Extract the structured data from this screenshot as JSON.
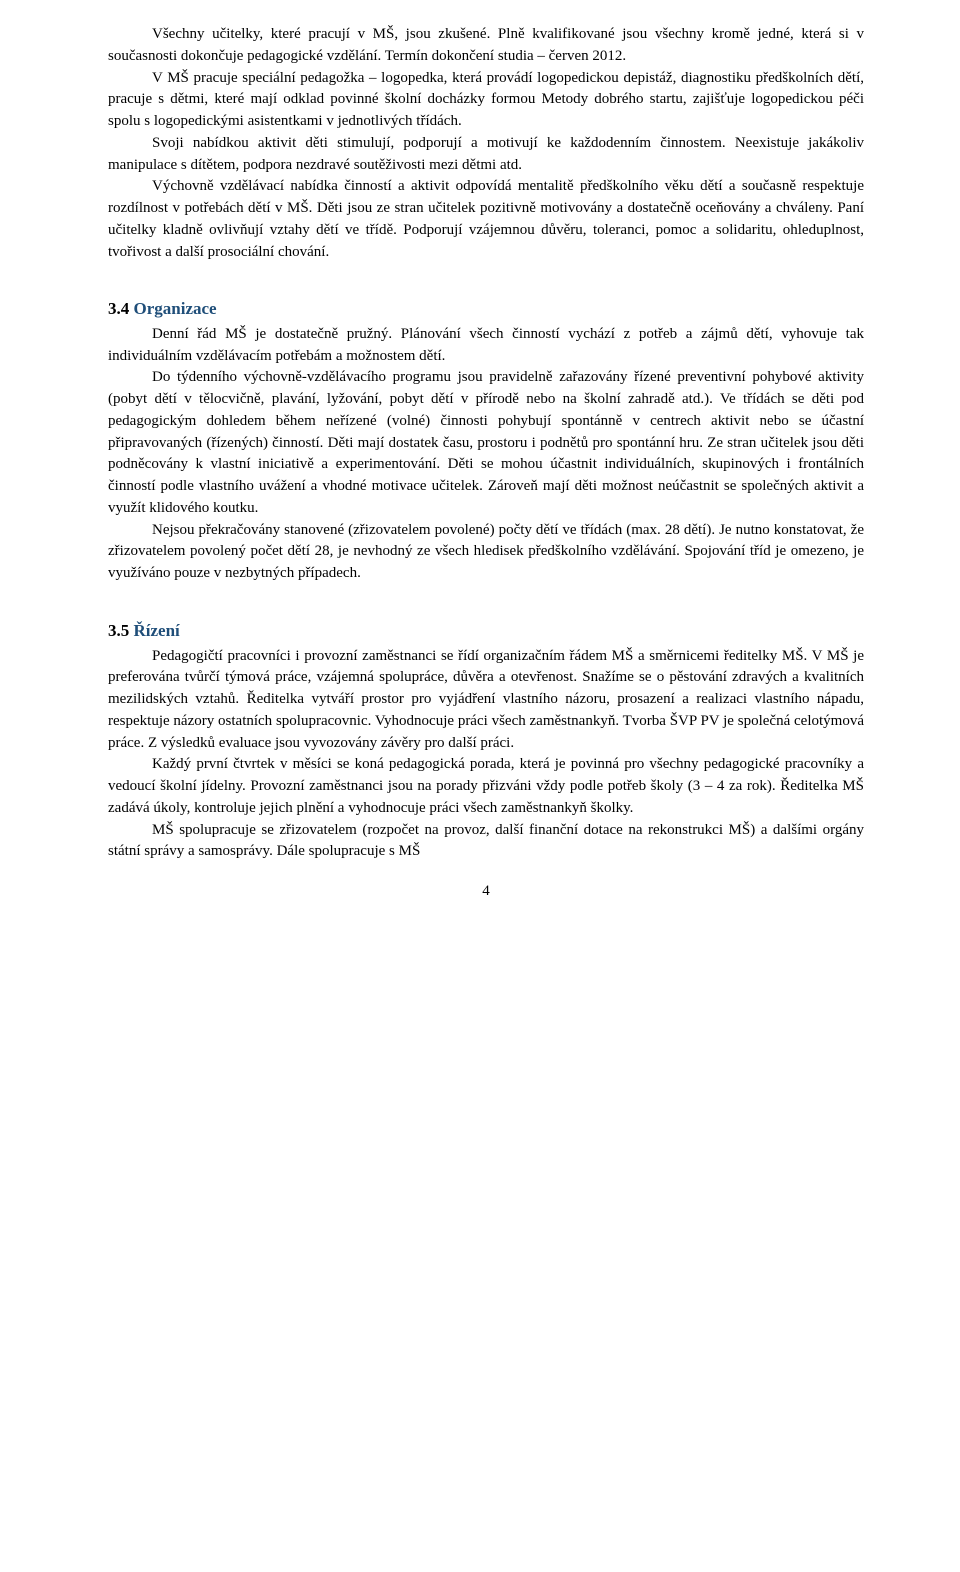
{
  "intro": {
    "p1": "Všechny učitelky, které pracují v MŠ, jsou zkušené. Plně kvalifikované jsou všechny kromě jedné, která si v současnosti dokončuje pedagogické vzdělání. Termín dokončení studia – červen 2012.",
    "p2": "V MŠ pracuje speciální pedagožka – logopedka, která provádí logopedickou depistáž, diagnostiku předškolních dětí, pracuje s dětmi, které mají odklad povinné školní docházky formou Metody dobrého startu, zajišťuje logopedickou péči spolu s logopedickými asistentkami v jednotlivých třídách.",
    "p3": "Svoji nabídkou aktivit děti stimulují, podporují a motivují ke každodenním činnostem. Neexistuje jakákoliv manipulace s dítětem, podpora nezdravé soutěživosti mezi dětmi atd.",
    "p4": "Výchovně vzdělávací nabídka činností a aktivit odpovídá mentalitě předškolního věku dětí a současně respektuje rozdílnost v potřebách dětí v MŠ. Děti jsou ze stran učitelek pozitivně motivovány a dostatečně oceňovány a chváleny. Paní učitelky kladně ovlivňují vztahy dětí ve třídě. Podporují vzájemnou důvěru, toleranci, pomoc a solidaritu, ohleduplnost, tvořivost a další prosociální chování."
  },
  "s34": {
    "num": "3.4",
    "title": "Organizace",
    "p1": "Denní řád MŠ je dostatečně pružný. Plánování všech činností vychází z potřeb a zájmů dětí, vyhovuje tak individuálním vzdělávacím potřebám a možnostem dětí.",
    "p2": "Do týdenního výchovně-vzdělávacího programu jsou pravidelně zařazovány řízené preventivní pohybové aktivity (pobyt dětí v tělocvičně, plavání, lyžování, pobyt dětí v přírodě nebo na školní zahradě atd.). Ve třídách se děti pod pedagogickým dohledem během neřízené (volné) činnosti pohybují spontánně v centrech aktivit nebo se účastní připravovaných (řízených) činností. Děti mají dostatek času, prostoru i podnětů pro spontánní hru. Ze stran učitelek jsou děti podněcovány k vlastní iniciativě a experimentování. Děti se mohou účastnit individuálních, skupinových i frontálních činností podle vlastního uvážení a vhodné motivace učitelek. Zároveň mají děti možnost neúčastnit se společných aktivit a využít klidového koutku.",
    "p3": "Nejsou překračovány stanovené (zřizovatelem povolené) počty dětí ve třídách (max. 28 dětí). Je nutno konstatovat, že zřizovatelem povolený počet dětí 28, je nevhodný ze všech hledisek předškolního vzdělávání. Spojování tříd je omezeno, je využíváno pouze v nezbytných případech."
  },
  "s35": {
    "num": "3.5",
    "title": "Řízení",
    "p1": "Pedagogičtí pracovníci i provozní zaměstnanci se řídí organizačním řádem MŠ a směrnicemi ředitelky MŠ. V MŠ je preferována tvůrčí týmová práce, vzájemná spolupráce, důvěra a otevřenost. Snažíme se o pěstování zdravých a kvalitních mezilidských vztahů. Ředitelka vytváří prostor pro vyjádření vlastního názoru, prosazení a realizaci vlastního nápadu, respektuje názory ostatních spolupracovnic. Vyhodnocuje práci všech zaměstnankyň. Tvorba ŠVP PV je společná celotýmová práce. Z výsledků evaluace jsou vyvozovány závěry pro další práci.",
    "p2": "Každý první čtvrtek v měsíci se koná pedagogická porada, která je povinná pro všechny pedagogické pracovníky a vedoucí školní jídelny. Provozní zaměstnanci jsou na porady přizváni vždy podle potřeb školy (3 – 4 za rok). Ředitelka MŠ zadává úkoly, kontroluje jejich plnění a vyhodnocuje práci všech zaměstnankyň školky.",
    "p3": "MŠ spolupracuje se zřizovatelem (rozpočet na provoz, další finanční dotace na rekonstrukci MŠ) a dalšími orgány státní správy a samosprávy. Dále spolupracuje s MŠ"
  },
  "page": "4"
}
